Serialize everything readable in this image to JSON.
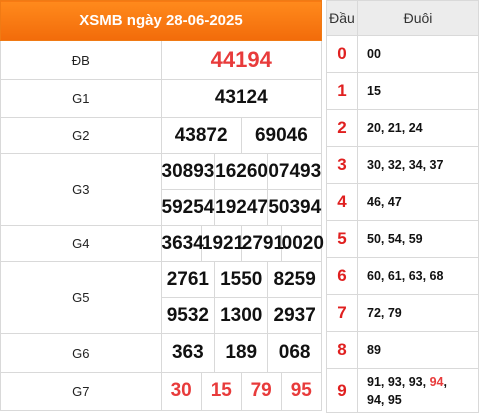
{
  "title": "XSMB ngày 28-06-2025",
  "labels": {
    "db": "ĐB",
    "g1": "G1",
    "g2": "G2",
    "g3": "G3",
    "g4": "G4",
    "g5": "G5",
    "g6": "G6",
    "g7": "G7"
  },
  "prizes": {
    "db": [
      "44194"
    ],
    "g1": [
      "43124"
    ],
    "g2": [
      "43872",
      "69046"
    ],
    "g3": [
      "30893",
      "16260",
      "07493",
      "59254",
      "19247",
      "50394"
    ],
    "g4": [
      "3634",
      "1921",
      "2791",
      "0020"
    ],
    "g5": [
      "2761",
      "1550",
      "8259",
      "9532",
      "1300",
      "2937"
    ],
    "g6": [
      "363",
      "189",
      "068"
    ],
    "g7": [
      "30",
      "15",
      "79",
      "95"
    ]
  },
  "dau_duoi": {
    "header_dau": "Đầu",
    "header_duoi": "Đuôi",
    "rows": [
      {
        "dau": "0",
        "duoi": "00"
      },
      {
        "dau": "1",
        "duoi": "15"
      },
      {
        "dau": "2",
        "duoi": "20, 21, 24"
      },
      {
        "dau": "3",
        "duoi": "30, 32, 34, 37"
      },
      {
        "dau": "4",
        "duoi": "46, 47"
      },
      {
        "dau": "5",
        "duoi": "50, 54, 59"
      },
      {
        "dau": "6",
        "duoi": "60, 61, 63, 68"
      },
      {
        "dau": "7",
        "duoi": "72, 79"
      },
      {
        "dau": "8",
        "duoi": "89"
      },
      {
        "dau": "9",
        "duoi_a": "91, 93, 93, ",
        "duoi_red": "94",
        "duoi_b": ",",
        "duoi_c": "94, 95"
      }
    ]
  },
  "colors": {
    "header_orange": "#f26b0a",
    "highlight_red": "#e83b3b",
    "head_digit_red": "#e02020",
    "grid": "#d9d9d9"
  }
}
